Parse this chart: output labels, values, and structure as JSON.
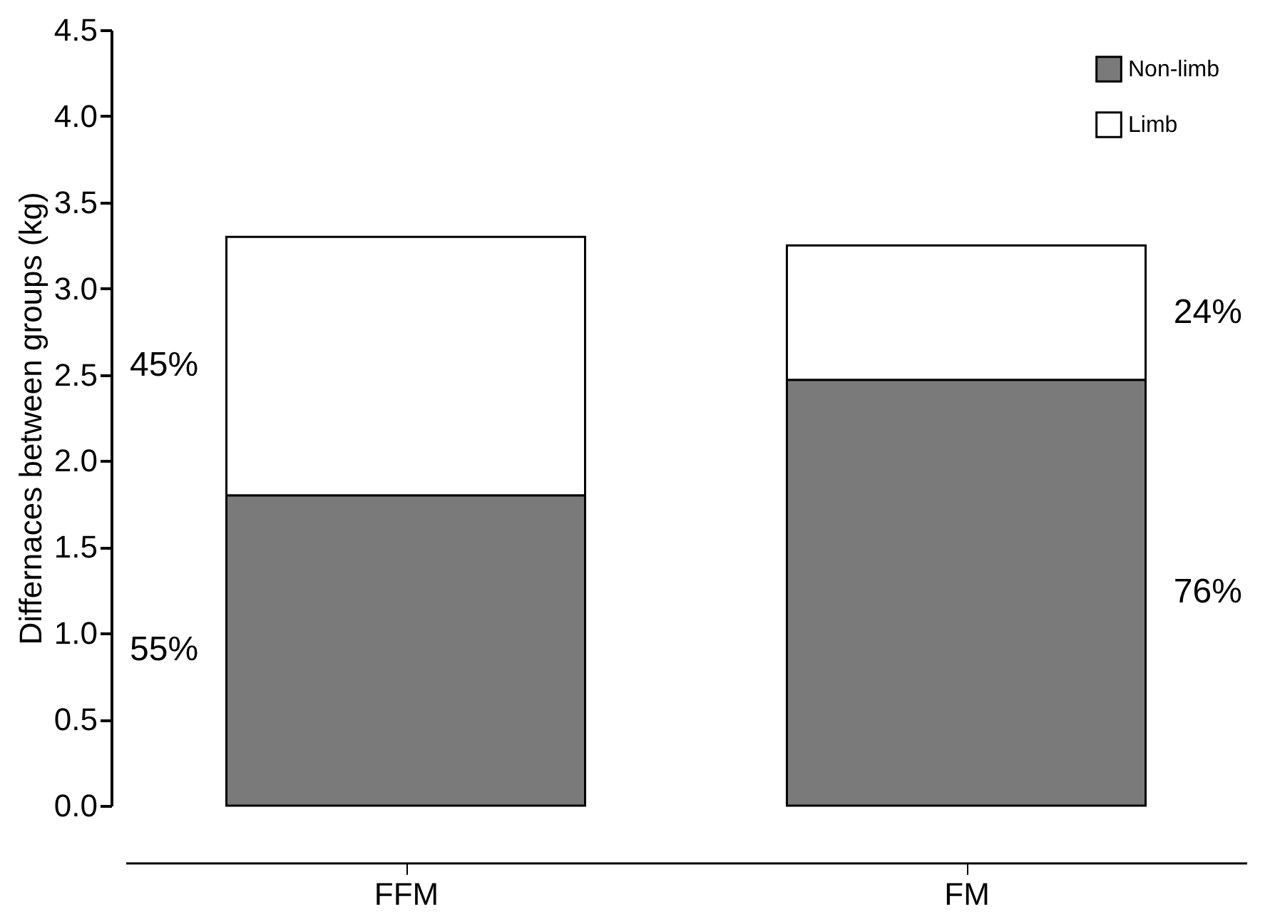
{
  "chart_data": {
    "type": "bar",
    "stacked": true,
    "ylabel": "Differnaces between groups (kg)",
    "categories": [
      "FFM",
      "FM"
    ],
    "series": [
      {
        "name": "Non-limb",
        "color": "#7a7a7a",
        "values": [
          1.8,
          2.47
        ]
      },
      {
        "name": "Limb",
        "color": "#ffffff",
        "values": [
          1.5,
          0.78
        ]
      }
    ],
    "ylim": [
      0,
      4.5
    ],
    "yticks": [
      {
        "value": 0,
        "label": "0.0"
      },
      0.5,
      {
        "value": 1,
        "label": "1.0"
      },
      1.5,
      {
        "value": 2,
        "label": "2.0"
      },
      2.5,
      {
        "value": 3,
        "label": "3.0"
      },
      3.5,
      {
        "value": 4,
        "label": "4.0"
      },
      4.5
    ],
    "annotations": [
      "45%",
      "55%",
      "24%",
      "76%"
    ],
    "grid": false,
    "legend": "top right"
  }
}
